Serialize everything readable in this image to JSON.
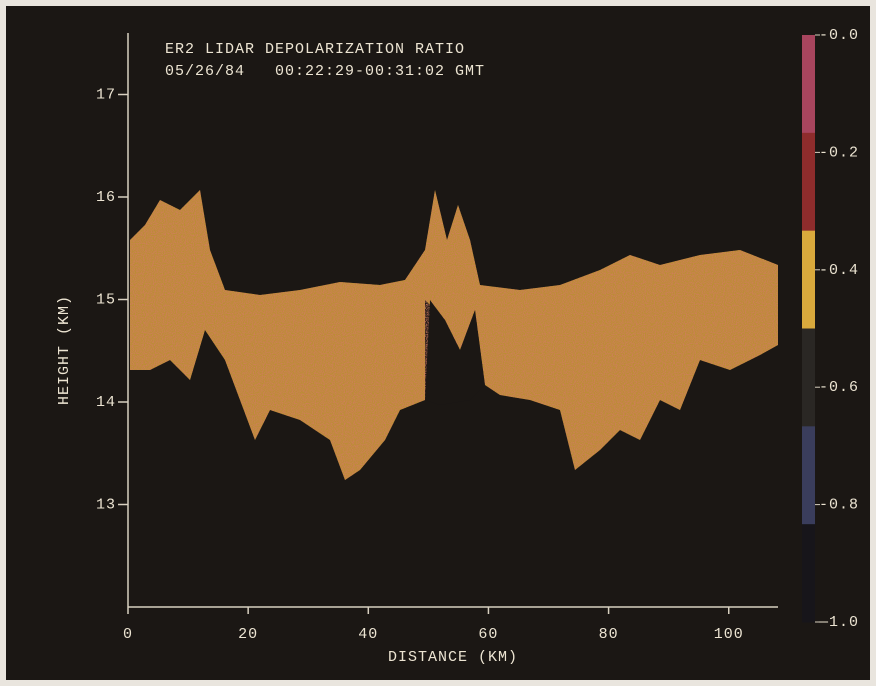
{
  "chart_data": {
    "type": "lidar-image",
    "title": "ER2 LIDAR DEPOLARIZATION RATIO",
    "subtitle": "05/26/84   00:22:29-00:31:02 GMT",
    "x_label": "DISTANCE (KM)",
    "y_label": "HEIGHT (KM)",
    "xlim": [
      0,
      108.2
    ],
    "xticks": [
      0,
      20,
      40,
      60,
      80,
      100
    ],
    "ylim": [
      12,
      17.6
    ],
    "yticks": [
      13,
      14,
      15,
      16,
      17
    ],
    "colorbar": {
      "lim": [
        0,
        -1
      ],
      "colors": [
        "#a8455e",
        "#8e2c2c",
        "#d9a93c",
        "#2a2724",
        "#3a3d5c",
        "#17151a"
      ],
      "ticks": [
        {
          "value": 0,
          "label": "-0.0"
        },
        {
          "value": -0.2,
          "label": "-0.2"
        },
        {
          "value": -0.4,
          "label": "-0.4"
        },
        {
          "value": -0.6,
          "label": "-0.6"
        },
        {
          "value": -0.8,
          "label": "-0.8"
        },
        {
          "value": -1,
          "label": "—1.0"
        }
      ]
    }
  }
}
